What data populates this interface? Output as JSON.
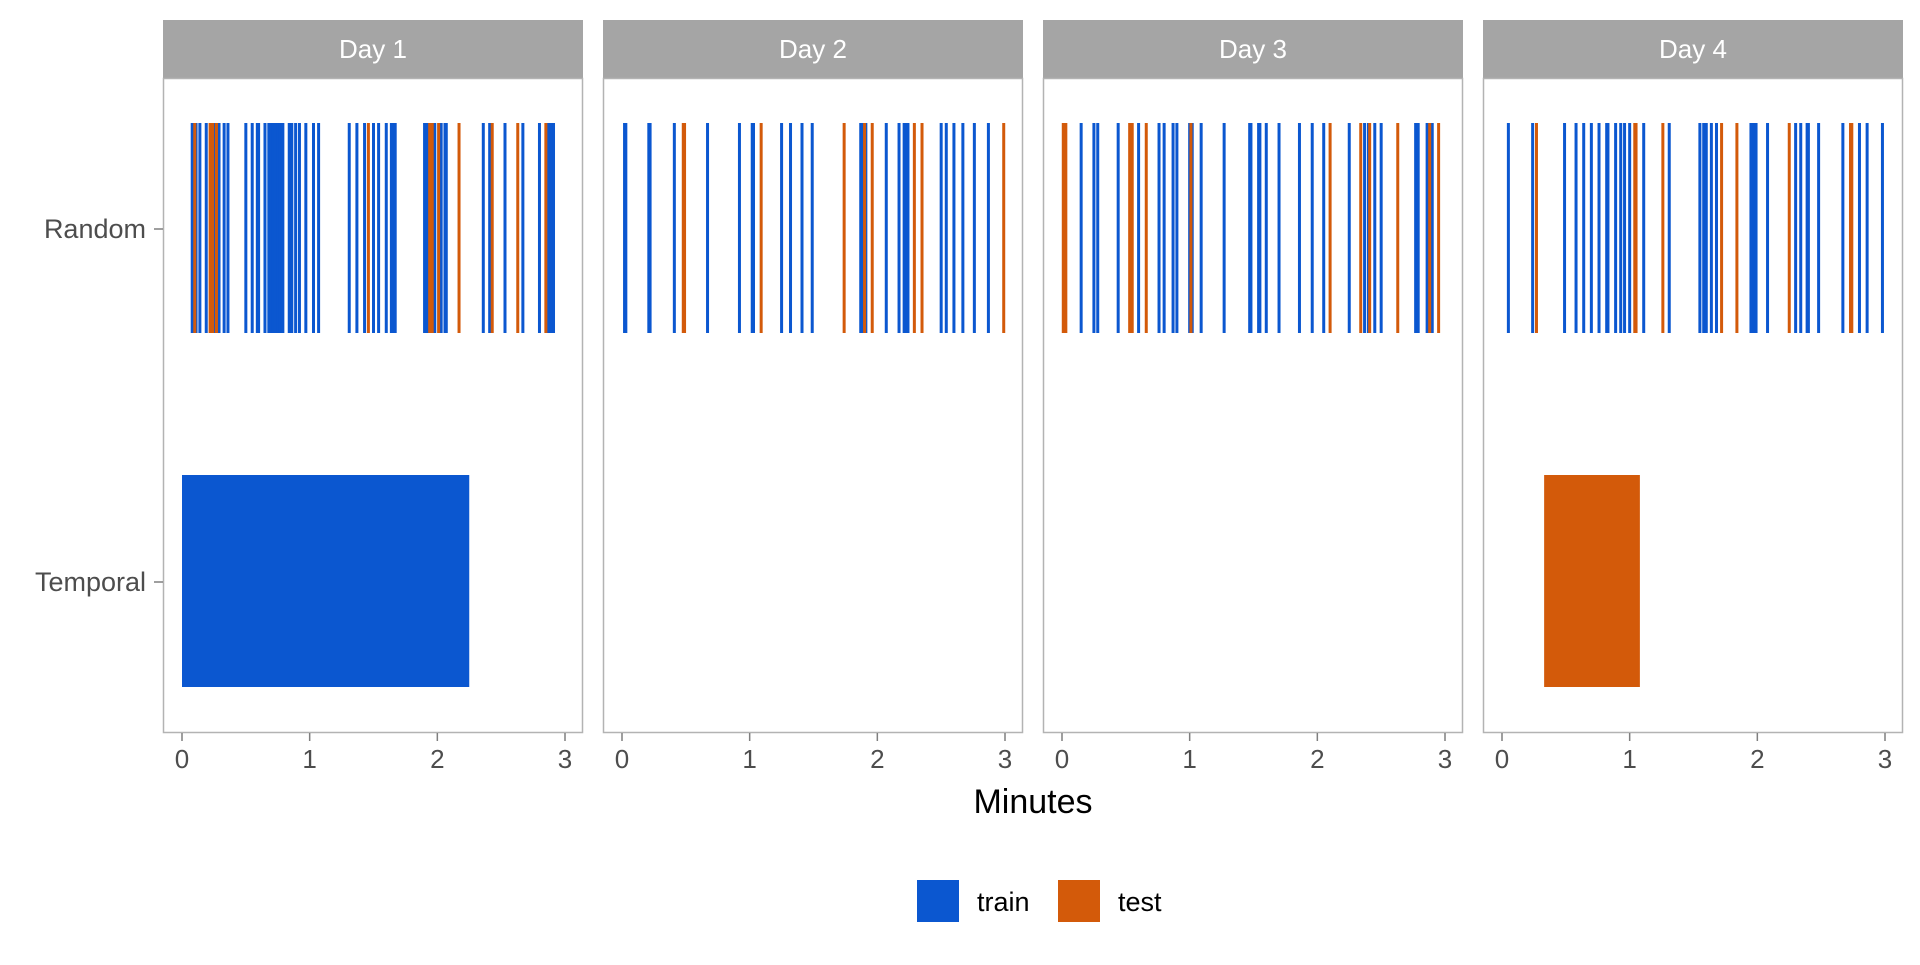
{
  "chart_data": {
    "type": "bar",
    "xlabel": "Minutes",
    "xlim": [
      0,
      3
    ],
    "x_ticks": [
      "0",
      "1",
      "2",
      "3"
    ],
    "rows": [
      "Random",
      "Temporal"
    ],
    "legend": {
      "placement": "bottom",
      "entries": [
        {
          "label": "train",
          "color": "#0B57D0"
        },
        {
          "label": "test",
          "color": "#D35A0A"
        }
      ]
    },
    "colors": {
      "train": "#0B57D0",
      "test": "#D35A0A"
    },
    "panels": [
      {
        "title": "Day 1",
        "random_train": [
          0.08,
          0.11,
          0.14,
          0.19,
          0.25,
          0.29,
          0.33,
          0.36,
          0.5,
          0.55,
          0.59,
          0.6,
          0.65,
          0.68,
          0.7,
          0.71,
          0.72,
          0.73,
          0.75,
          0.77,
          0.78,
          0.79,
          0.84,
          0.86,
          0.89,
          0.92,
          0.97,
          1.03,
          1.07,
          1.31,
          1.37,
          1.43,
          1.5,
          1.54,
          1.6,
          1.64,
          1.65,
          1.66,
          1.67,
          1.9,
          1.92,
          1.98,
          2.03,
          2.06,
          2.07,
          2.36,
          2.41,
          2.53,
          2.67,
          2.8,
          2.87,
          2.89,
          2.91
        ],
        "random_test": [
          0.1,
          0.22,
          0.24,
          0.27,
          1.46,
          1.94,
          1.96,
          2.01,
          2.17,
          2.43,
          2.63,
          2.85
        ],
        "temporal": [
          {
            "set": "train",
            "start": 0.0,
            "end": 2.25
          }
        ]
      },
      {
        "title": "Day 2",
        "random_train": [
          0.02,
          0.03,
          0.21,
          0.22,
          0.41,
          0.67,
          0.92,
          1.02,
          1.03,
          1.25,
          1.32,
          1.41,
          1.49,
          1.87,
          1.88,
          1.91,
          2.07,
          2.17,
          2.21,
          2.23,
          2.24,
          2.5,
          2.54,
          2.6,
          2.67,
          2.76,
          2.87
        ],
        "random_test": [
          0.48,
          0.49,
          1.09,
          1.74,
          1.9,
          1.96,
          2.29,
          2.35,
          2.99
        ],
        "temporal": []
      },
      {
        "title": "Day 3",
        "random_train": [
          0.15,
          0.25,
          0.28,
          0.44,
          0.6,
          0.76,
          0.8,
          0.87,
          0.9,
          1.0,
          1.02,
          1.09,
          1.27,
          1.47,
          1.48,
          1.54,
          1.55,
          1.6,
          1.7,
          1.86,
          1.96,
          2.05,
          2.25,
          2.37,
          2.4,
          2.45,
          2.5,
          2.77,
          2.79,
          2.86,
          2.87,
          2.9
        ],
        "random_test": [
          0.01,
          0.02,
          0.03,
          0.53,
          0.55,
          0.66,
          1.01,
          2.1,
          2.34,
          2.41,
          2.63,
          2.88,
          2.95
        ],
        "temporal": []
      },
      {
        "title": "Day 4",
        "random_train": [
          0.05,
          0.24,
          0.49,
          0.58,
          0.64,
          0.7,
          0.76,
          0.82,
          0.83,
          0.89,
          0.93,
          0.96,
          1.0,
          1.11,
          1.31,
          1.55,
          1.58,
          1.6,
          1.64,
          1.68,
          1.95,
          1.96,
          1.97,
          1.98,
          1.99,
          2.08,
          2.3,
          2.34,
          2.39,
          2.4,
          2.48,
          2.67,
          2.8,
          2.86,
          2.98
        ],
        "random_test": [
          0.27,
          1.04,
          1.05,
          1.26,
          1.72,
          1.84,
          2.25,
          2.73,
          2.74
        ],
        "temporal": [
          {
            "set": "test",
            "start": 0.33,
            "end": 1.08
          }
        ]
      }
    ]
  }
}
